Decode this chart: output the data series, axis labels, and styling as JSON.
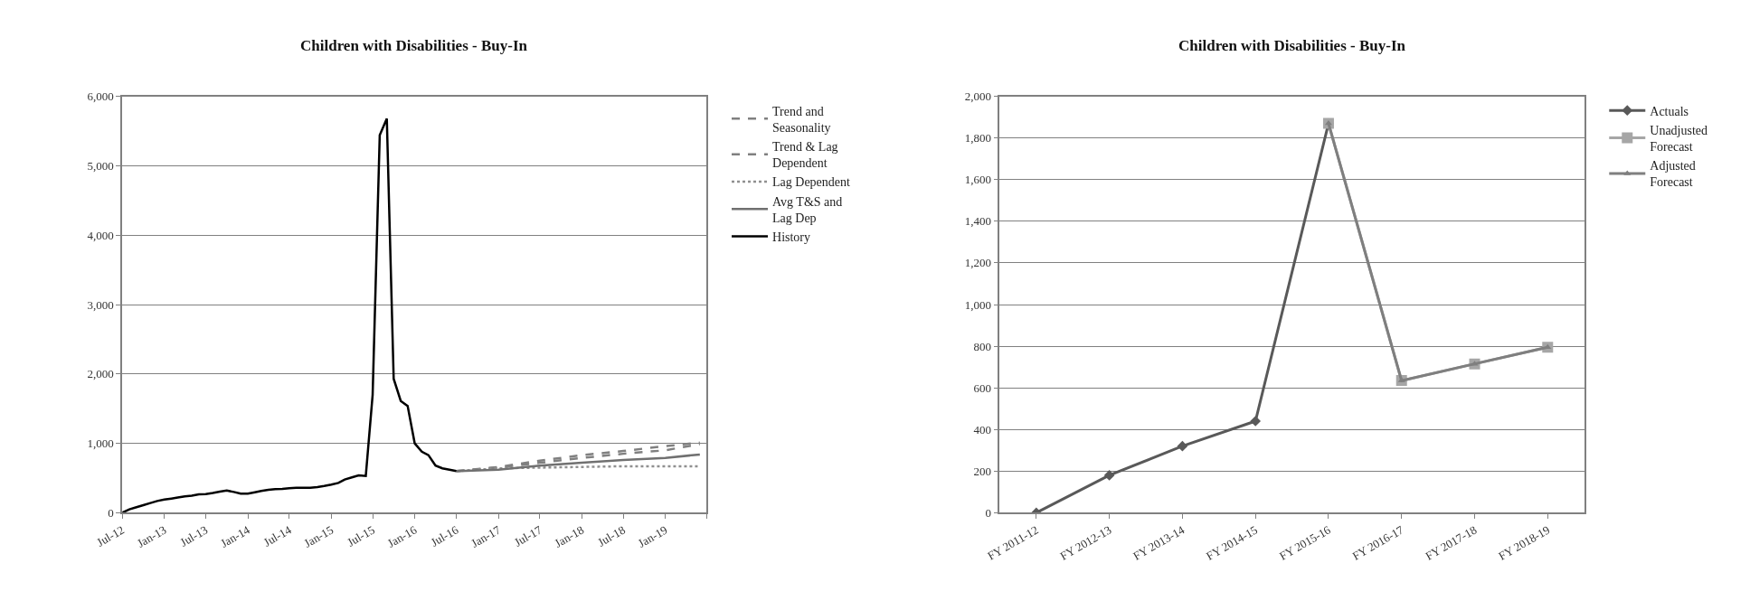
{
  "chart_data": [
    {
      "type": "line",
      "title": "Children with Disabilities - Buy-In",
      "marker": "none",
      "legend": "right",
      "grid": "y",
      "xlim": [
        "2012-07",
        "2019-07"
      ],
      "xticks": [
        {
          "value": "2012-07",
          "label": "Jul-12"
        },
        {
          "value": "2013-01",
          "label": "Jan-13"
        },
        {
          "value": "2013-07",
          "label": "Jul-13"
        },
        {
          "value": "2014-01",
          "label": "Jan-14"
        },
        {
          "value": "2014-07",
          "label": "Jul-14"
        },
        {
          "value": "2015-01",
          "label": "Jan-15"
        },
        {
          "value": "2015-07",
          "label": "Jul-15"
        },
        {
          "value": "2016-01",
          "label": "Jan-16"
        },
        {
          "value": "2016-07",
          "label": "Jul-16"
        },
        {
          "value": "2017-01",
          "label": "Jan-17"
        },
        {
          "value": "2017-07",
          "label": "Jul-17"
        },
        {
          "value": "2018-01",
          "label": "Jan-18"
        },
        {
          "value": "2018-07",
          "label": "Jul-18"
        },
        {
          "value": "2019-01",
          "label": "Jan-19"
        },
        {
          "value": "2019-07",
          "label": null
        }
      ],
      "ylim": [
        0,
        6000
      ],
      "yticks": [
        0,
        {
          "value": 1000,
          "label": "1,000"
        },
        {
          "value": 2000,
          "label": "2,000"
        },
        {
          "value": 3000,
          "label": "3,000"
        },
        {
          "value": 4000,
          "label": "4,000"
        },
        {
          "value": 5000,
          "label": "5,000"
        },
        {
          "value": 6000,
          "label": "6,000"
        }
      ],
      "series": [
        {
          "name": "Trend and Seasonality",
          "color": "#808080",
          "line_style": "dashed",
          "x": [
            "2016-07",
            "2017-01",
            "2017-07",
            "2018-01",
            "2018-07",
            "2019-01",
            "2019-06"
          ],
          "values": [
            600,
            660,
            750,
            830,
            890,
            960,
            1010
          ]
        },
        {
          "name": "Trend & Lag Dependent",
          "color": "#808080",
          "line_style": "dashed",
          "x": [
            "2016-07",
            "2017-01",
            "2017-07",
            "2018-01",
            "2018-07",
            "2019-01",
            "2019-06"
          ],
          "values": [
            600,
            650,
            720,
            790,
            850,
            900,
            990
          ]
        },
        {
          "name": "Lag Dependent",
          "color": "#909090",
          "line_style": "dotted",
          "x": [
            "2016-07",
            "2017-01",
            "2017-07",
            "2018-01",
            "2018-07",
            "2019-01",
            "2019-06"
          ],
          "values": [
            600,
            640,
            650,
            660,
            670,
            670,
            670
          ]
        },
        {
          "name": "Avg T&S and Lag Dep",
          "color": "#707070",
          "line_style": "solid",
          "x": [
            "2016-07",
            "2017-01",
            "2017-07",
            "2018-01",
            "2018-07",
            "2019-01",
            "2019-06"
          ],
          "values": [
            600,
            620,
            680,
            720,
            760,
            790,
            840
          ]
        },
        {
          "name": "History",
          "color": "#000000",
          "line_style": "solid",
          "x": [
            "2012-07",
            "2012-08",
            "2012-09",
            "2012-10",
            "2012-11",
            "2012-12",
            "2013-01",
            "2013-02",
            "2013-03",
            "2013-04",
            "2013-05",
            "2013-06",
            "2013-07",
            "2013-08",
            "2013-09",
            "2013-10",
            "2013-11",
            "2013-12",
            "2014-01",
            "2014-02",
            "2014-03",
            "2014-04",
            "2014-05",
            "2014-06",
            "2014-07",
            "2014-08",
            "2014-09",
            "2014-10",
            "2014-11",
            "2014-12",
            "2015-01",
            "2015-02",
            "2015-03",
            "2015-04",
            "2015-05",
            "2015-06",
            "2015-07",
            "2015-08",
            "2015-09",
            "2015-10",
            "2015-11",
            "2015-12",
            "2016-01",
            "2016-02",
            "2016-03",
            "2016-04",
            "2016-05",
            "2016-06",
            "2016-07"
          ],
          "values": [
            0,
            50,
            80,
            110,
            140,
            170,
            190,
            205,
            220,
            235,
            245,
            265,
            270,
            285,
            305,
            320,
            300,
            275,
            275,
            295,
            315,
            330,
            340,
            345,
            355,
            360,
            360,
            360,
            370,
            385,
            405,
            430,
            480,
            510,
            540,
            530,
            1700,
            5440,
            5680,
            1930,
            1610,
            1540,
            1000,
            880,
            830,
            680,
            640,
            620,
            600
          ]
        }
      ]
    },
    {
      "type": "line",
      "title": "Children with Disabilities - Buy-In",
      "legend": "right",
      "grid": "y",
      "categories": [
        "FY 2011-12",
        "FY 2012-13",
        "FY 2013-14",
        "FY 2014-15",
        "FY 2015-16",
        "FY 2016-17",
        "FY 2017-18",
        "FY 2018-19"
      ],
      "ylim": [
        0,
        2000
      ],
      "yticks": [
        0,
        200,
        400,
        600,
        800,
        {
          "value": 1000,
          "label": "1,000"
        },
        {
          "value": 1200,
          "label": "1,200"
        },
        {
          "value": 1400,
          "label": "1,400"
        },
        {
          "value": 1600,
          "label": "1,600"
        },
        {
          "value": 1800,
          "label": "1,800"
        },
        {
          "value": 2000,
          "label": "2,000"
        }
      ],
      "series": [
        {
          "name": "Actuals",
          "color": "#595959",
          "marker": "diamond",
          "values": [
            0,
            180,
            320,
            440,
            1870,
            null,
            null,
            null
          ]
        },
        {
          "name": "Unadjusted Forecast",
          "color": "#a6a6a6",
          "marker": "square",
          "values": [
            null,
            null,
            null,
            null,
            1870,
            635,
            715,
            795
          ]
        },
        {
          "name": "Adjusted Forecast",
          "color": "#7f7f7f",
          "marker": "triangle",
          "values": [
            null,
            null,
            null,
            null,
            1870,
            635,
            715,
            795
          ]
        }
      ]
    }
  ]
}
